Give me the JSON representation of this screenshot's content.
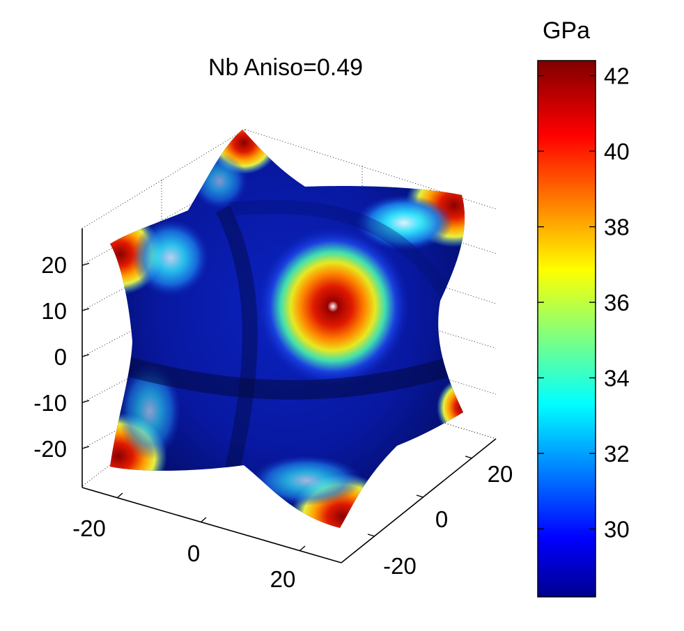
{
  "chart_data": {
    "type": "surface3d",
    "title": "Nb Aniso=0.49",
    "colormap": "jet",
    "surface_shape": "cubic-anisotropic closed surface with eight lobes (octahedral-star)",
    "colorbar": {
      "label": "GPa",
      "range": [
        28.2,
        42.4
      ],
      "ticks": [
        30,
        32,
        34,
        36,
        38,
        40,
        42
      ],
      "tick_labels": [
        "30",
        "32",
        "34",
        "36",
        "38",
        "40",
        "42"
      ]
    },
    "axes": {
      "z": {
        "ticks": [
          -20,
          -10,
          0,
          10,
          20
        ],
        "tick_labels": [
          "-20",
          "-10",
          "0",
          "10",
          "20"
        ]
      },
      "x": {
        "ticks": [
          -20,
          0,
          20
        ],
        "tick_labels": [
          "-20",
          "0",
          "20"
        ]
      },
      "y": {
        "ticks": [
          -20,
          0,
          20
        ],
        "tick_labels": [
          "-20",
          "0",
          "20"
        ]
      }
    },
    "grid": true,
    "maximum_value": 42.4,
    "minimum_value": 28.2
  }
}
